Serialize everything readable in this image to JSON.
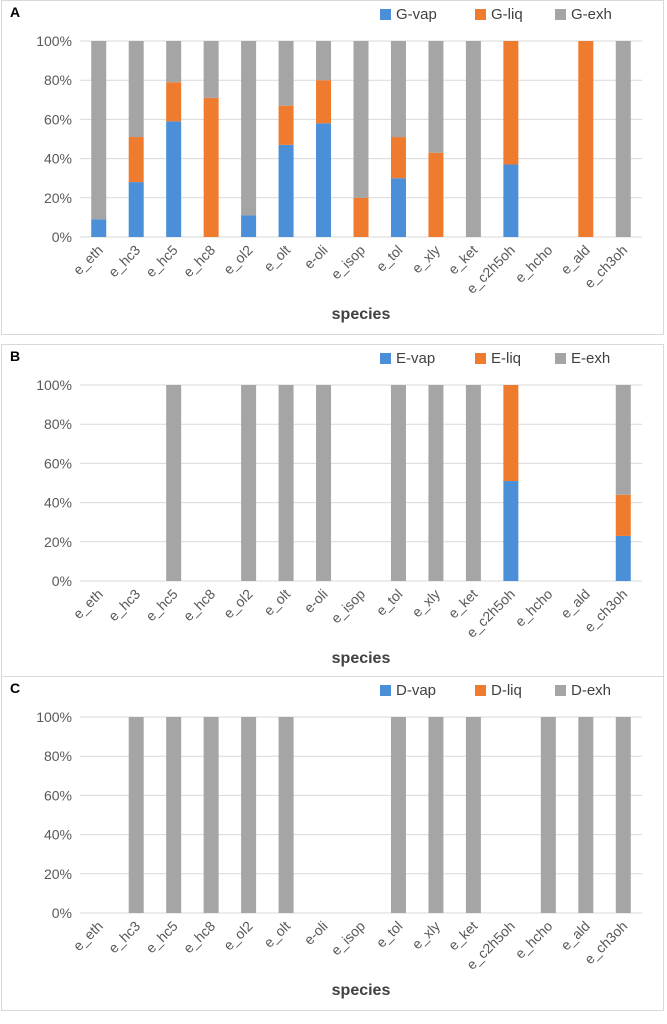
{
  "colors": {
    "vap": "#4a8fd8",
    "liq": "#ef7c2e",
    "exh": "#a5a5a5",
    "grid": "#d9d9d9"
  },
  "chart_data": [
    {
      "panel": "A",
      "type": "bar",
      "stacked": true,
      "xlabel": "species",
      "ylabel": "",
      "ylim": [
        0,
        100
      ],
      "yticks": [
        "0%",
        "20%",
        "40%",
        "60%",
        "80%",
        "100%"
      ],
      "categories": [
        "e_eth",
        "e_hc3",
        "e_hc5",
        "e_hc8",
        "e_ol2",
        "e_olt",
        "e-oli",
        "e_isop",
        "e_tol",
        "e_xly",
        "e_ket",
        "e_c2h5oh",
        "e_hcho",
        "e_ald",
        "e_ch3oh"
      ],
      "series": [
        {
          "name": "G-vap",
          "values": [
            9,
            28,
            59,
            0,
            11,
            47,
            58,
            0,
            30,
            0,
            0,
            37,
            0,
            0,
            0
          ]
        },
        {
          "name": "G-liq",
          "values": [
            0,
            23,
            20,
            71,
            0,
            20,
            22,
            20,
            21,
            43,
            0,
            63,
            0,
            100,
            0
          ]
        },
        {
          "name": "G-exh",
          "values": [
            91,
            49,
            21,
            29,
            89,
            33,
            20,
            80,
            49,
            57,
            100,
            0,
            0,
            0,
            100
          ]
        }
      ]
    },
    {
      "panel": "B",
      "type": "bar",
      "stacked": true,
      "xlabel": "species",
      "ylabel": "",
      "ylim": [
        0,
        100
      ],
      "yticks": [
        "0%",
        "20%",
        "40%",
        "60%",
        "80%",
        "100%"
      ],
      "categories": [
        "e_eth",
        "e_hc3",
        "e_hc5",
        "e_hc8",
        "e_ol2",
        "e_olt",
        "e-oli",
        "e_isop",
        "e_tol",
        "e_xly",
        "e_ket",
        "e_c2h5oh",
        "e_hcho",
        "e_ald",
        "e_ch3oh"
      ],
      "series": [
        {
          "name": "E-vap",
          "values": [
            0,
            0,
            0,
            0,
            0,
            0,
            0,
            0,
            0,
            0,
            0,
            51,
            0,
            0,
            23
          ]
        },
        {
          "name": "E-liq",
          "values": [
            0,
            0,
            0,
            0,
            0,
            0,
            0,
            0,
            0,
            0,
            0,
            49,
            0,
            0,
            21
          ]
        },
        {
          "name": "E-exh",
          "values": [
            0,
            0,
            100,
            0,
            100,
            100,
            100,
            0,
            100,
            100,
            100,
            0,
            0,
            0,
            56
          ]
        }
      ]
    },
    {
      "panel": "C",
      "type": "bar",
      "stacked": true,
      "xlabel": "species",
      "ylabel": "",
      "ylim": [
        0,
        100
      ],
      "yticks": [
        "0%",
        "20%",
        "40%",
        "60%",
        "80%",
        "100%"
      ],
      "categories": [
        "e_eth",
        "e_hc3",
        "e_hc5",
        "e_hc8",
        "e_ol2",
        "e_olt",
        "e-oli",
        "e_isop",
        "e_tol",
        "e_xly",
        "e_ket",
        "e_c2h5oh",
        "e_hcho",
        "e_ald",
        "e_ch3oh"
      ],
      "series": [
        {
          "name": "D-vap",
          "values": [
            0,
            0,
            0,
            0,
            0,
            0,
            0,
            0,
            0,
            0,
            0,
            0,
            0,
            0,
            0
          ]
        },
        {
          "name": "D-liq",
          "values": [
            0,
            0,
            0,
            0,
            0,
            0,
            0,
            0,
            0,
            0,
            0,
            0,
            0,
            0,
            0
          ]
        },
        {
          "name": "D-exh",
          "values": [
            0,
            100,
            100,
            100,
            100,
            100,
            0,
            0,
            100,
            100,
            100,
            0,
            100,
            100,
            100
          ]
        }
      ]
    }
  ]
}
